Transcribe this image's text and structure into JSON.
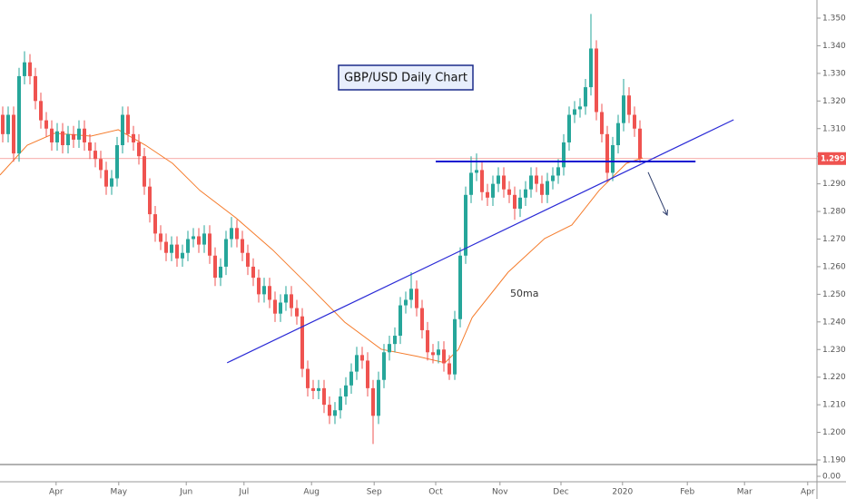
{
  "chart_data": {
    "type": "candlestick",
    "title": "GBP/USD Daily Chart",
    "up_color": "#26a69a",
    "down_color": "#ef5350",
    "open": [
      1.315,
      1.308,
      1.315,
      1.301,
      1.329,
      1.334,
      1.329,
      1.32,
      1.313,
      1.31,
      1.305,
      1.309,
      1.304,
      1.308,
      1.306,
      1.31,
      1.305,
      1.302,
      1.299,
      1.295,
      1.289,
      1.292,
      1.304,
      1.315,
      1.308,
      1.305,
      1.3,
      1.289,
      1.279,
      1.272,
      1.269,
      1.265,
      1.268,
      1.263,
      1.265,
      1.27,
      1.271,
      1.268,
      1.272,
      1.264,
      1.256,
      1.26,
      1.27,
      1.274,
      1.27,
      1.265,
      1.26,
      1.256,
      1.25,
      1.253,
      1.248,
      1.243,
      1.247,
      1.25,
      1.245,
      1.242,
      1.223,
      1.216,
      1.215,
      1.216,
      1.21,
      1.206,
      1.208,
      1.213,
      1.217,
      1.222,
      1.228,
      1.226,
      1.216,
      1.206,
      1.219,
      1.229,
      1.232,
      1.235,
      1.246,
      1.248,
      1.252,
      1.245,
      1.237,
      1.229,
      1.228,
      1.23,
      1.225,
      1.221,
      1.241,
      1.264,
      1.286,
      1.294,
      1.295,
      1.287,
      1.285,
      1.29,
      1.293,
      1.288,
      1.286,
      1.281,
      1.285,
      1.288,
      1.293,
      1.29,
      1.286,
      1.291,
      1.293,
      1.296,
      1.305,
      1.315,
      1.317,
      1.318,
      1.325,
      1.339,
      1.316,
      1.308,
      1.294,
      1.304,
      1.312,
      1.322,
      1.315,
      1.31
    ],
    "high": [
      1.318,
      1.318,
      1.318,
      1.332,
      1.338,
      1.337,
      1.332,
      1.323,
      1.316,
      1.313,
      1.312,
      1.312,
      1.311,
      1.311,
      1.313,
      1.313,
      1.308,
      1.305,
      1.302,
      1.298,
      1.295,
      1.307,
      1.318,
      1.318,
      1.311,
      1.308,
      1.303,
      1.292,
      1.282,
      1.275,
      1.272,
      1.271,
      1.271,
      1.268,
      1.273,
      1.274,
      1.274,
      1.275,
      1.275,
      1.267,
      1.263,
      1.273,
      1.278,
      1.277,
      1.273,
      1.268,
      1.263,
      1.259,
      1.256,
      1.256,
      1.251,
      1.25,
      1.253,
      1.253,
      1.248,
      1.245,
      1.226,
      1.219,
      1.219,
      1.219,
      1.213,
      1.211,
      1.216,
      1.22,
      1.225,
      1.231,
      1.231,
      1.229,
      1.219,
      1.222,
      1.232,
      1.235,
      1.238,
      1.249,
      1.251,
      1.258,
      1.255,
      1.248,
      1.24,
      1.232,
      1.233,
      1.233,
      1.228,
      1.244,
      1.267,
      1.289,
      1.3,
      1.301,
      1.298,
      1.29,
      1.293,
      1.296,
      1.296,
      1.291,
      1.289,
      1.288,
      1.291,
      1.296,
      1.296,
      1.293,
      1.294,
      1.296,
      1.299,
      1.308,
      1.318,
      1.32,
      1.321,
      1.328,
      1.3515,
      1.342,
      1.319,
      1.311,
      1.307,
      1.315,
      1.328,
      1.325,
      1.318,
      1.313
    ],
    "low": [
      1.305,
      1.305,
      1.298,
      1.298,
      1.326,
      1.326,
      1.317,
      1.31,
      1.307,
      1.302,
      1.302,
      1.301,
      1.301,
      1.303,
      1.303,
      1.302,
      1.299,
      1.296,
      1.292,
      1.286,
      1.286,
      1.289,
      1.301,
      1.305,
      1.302,
      1.297,
      1.286,
      1.276,
      1.269,
      1.266,
      1.262,
      1.262,
      1.26,
      1.26,
      1.262,
      1.267,
      1.265,
      1.265,
      1.261,
      1.253,
      1.253,
      1.257,
      1.267,
      1.267,
      1.262,
      1.257,
      1.253,
      1.247,
      1.247,
      1.245,
      1.24,
      1.24,
      1.244,
      1.242,
      1.239,
      1.22,
      1.213,
      1.212,
      1.212,
      1.207,
      1.203,
      1.203,
      1.205,
      1.21,
      1.214,
      1.219,
      1.223,
      1.213,
      1.1958,
      1.203,
      1.216,
      1.226,
      1.229,
      1.232,
      1.243,
      1.245,
      1.242,
      1.234,
      1.226,
      1.225,
      1.225,
      1.222,
      1.219,
      1.219,
      1.238,
      1.261,
      1.283,
      1.291,
      1.284,
      1.282,
      1.282,
      1.287,
      1.285,
      1.283,
      1.277,
      1.278,
      1.282,
      1.285,
      1.287,
      1.283,
      1.283,
      1.288,
      1.29,
      1.293,
      1.302,
      1.312,
      1.314,
      1.315,
      1.322,
      1.313,
      1.305,
      1.2905,
      1.291,
      1.301,
      1.309,
      1.312,
      1.307,
      1.2975
    ],
    "close": [
      1.308,
      1.315,
      1.301,
      1.329,
      1.334,
      1.329,
      1.32,
      1.313,
      1.31,
      1.305,
      1.309,
      1.304,
      1.308,
      1.306,
      1.31,
      1.305,
      1.302,
      1.299,
      1.295,
      1.289,
      1.292,
      1.304,
      1.315,
      1.308,
      1.305,
      1.3,
      1.289,
      1.279,
      1.272,
      1.269,
      1.265,
      1.268,
      1.263,
      1.265,
      1.27,
      1.271,
      1.268,
      1.272,
      1.264,
      1.256,
      1.26,
      1.27,
      1.274,
      1.27,
      1.265,
      1.26,
      1.256,
      1.25,
      1.253,
      1.248,
      1.243,
      1.247,
      1.25,
      1.245,
      1.242,
      1.223,
      1.216,
      1.215,
      1.216,
      1.21,
      1.206,
      1.208,
      1.213,
      1.217,
      1.222,
      1.228,
      1.226,
      1.216,
      1.206,
      1.219,
      1.229,
      1.232,
      1.235,
      1.246,
      1.248,
      1.252,
      1.245,
      1.237,
      1.229,
      1.228,
      1.23,
      1.225,
      1.221,
      1.241,
      1.264,
      1.286,
      1.294,
      1.295,
      1.287,
      1.285,
      1.29,
      1.293,
      1.288,
      1.286,
      1.281,
      1.285,
      1.288,
      1.293,
      1.29,
      1.286,
      1.291,
      1.293,
      1.296,
      1.305,
      1.315,
      1.317,
      1.318,
      1.325,
      1.339,
      1.316,
      1.308,
      1.294,
      1.304,
      1.312,
      1.322,
      1.315,
      1.31,
      1.2992
    ],
    "ma": {
      "name": "50ma",
      "color": "#f57c2c",
      "x": [
        0,
        5,
        10,
        16.7,
        21.7,
        26.7,
        31.7,
        36.7,
        43.3,
        50,
        56.7,
        63.3,
        70,
        76.7,
        81.7,
        84.2,
        86.7,
        93.3,
        100,
        105,
        110,
        115,
        118
      ],
      "values": [
        1.2932,
        1.304,
        1.3083,
        1.3073,
        1.3096,
        1.304,
        1.2974,
        1.2876,
        1.2777,
        1.2662,
        1.2531,
        1.2399,
        1.2301,
        1.2275,
        1.2252,
        1.2301,
        1.2416,
        1.258,
        1.2702,
        1.2751,
        1.2876,
        1.2974,
        1.2994
      ]
    },
    "trendline": {
      "color": "#2a2ad6",
      "x": [
        41.7,
        134.7
      ],
      "values": [
        1.2252,
        1.3132
      ]
    },
    "support_line": {
      "color": "#1010d0",
      "x": [
        80,
        127.7
      ],
      "values": [
        1.2981,
        1.2981
      ]
    },
    "arrow": {
      "color": "#2a3a6a",
      "x": [
        119,
        122.5
      ],
      "values": [
        1.2942,
        1.2787
      ]
    },
    "last_price": {
      "value": 1.29915,
      "label": "1.29915",
      "color": "#ef5350"
    },
    "xlim": [
      0,
      150
    ],
    "xticks": [
      {
        "value": 10.3,
        "label": "Apr"
      },
      {
        "value": 21.8,
        "label": "May"
      },
      {
        "value": 34.2,
        "label": "Jun"
      },
      {
        "value": 44.8,
        "label": "Jul"
      },
      {
        "value": 57.2,
        "label": "Aug"
      },
      {
        "value": 68.7,
        "label": "Sep"
      },
      {
        "value": 80,
        "label": "Oct"
      },
      {
        "value": 91.8,
        "label": "Nov"
      },
      {
        "value": 103,
        "label": "Dec"
      },
      {
        "value": 114.3,
        "label": "2020"
      },
      {
        "value": 126.2,
        "label": "Feb"
      },
      {
        "value": 136.7,
        "label": "Mar"
      },
      {
        "value": 148.3,
        "label": "Apr"
      }
    ],
    "ylim": [
      1.19,
      1.35
    ],
    "yticks": [
      {
        "value": 1.19,
        "label": "1.19000"
      },
      {
        "value": 1.2,
        "label": "1.20000"
      },
      {
        "value": 1.21,
        "label": "1.21000"
      },
      {
        "value": 1.22,
        "label": "1.22000"
      },
      {
        "value": 1.23,
        "label": "1.23000"
      },
      {
        "value": 1.24,
        "label": "1.24000"
      },
      {
        "value": 1.25,
        "label": "1.25000"
      },
      {
        "value": 1.26,
        "label": "1.26000"
      },
      {
        "value": 1.27,
        "label": "1.27000"
      },
      {
        "value": 1.28,
        "label": "1.28000"
      },
      {
        "value": 1.29,
        "label": "1.29000"
      },
      {
        "value": 1.3,
        "label": "1.30000"
      },
      {
        "value": 1.31,
        "label": "1.31000"
      },
      {
        "value": 1.32,
        "label": "1.32000"
      },
      {
        "value": 1.33,
        "label": "1.33000"
      },
      {
        "value": 1.34,
        "label": "1.34000"
      },
      {
        "value": 1.35,
        "label": "1.35000"
      }
    ],
    "lower_pane": {
      "yticks": [
        {
          "value": 0,
          "label": "0.00"
        }
      ]
    }
  }
}
